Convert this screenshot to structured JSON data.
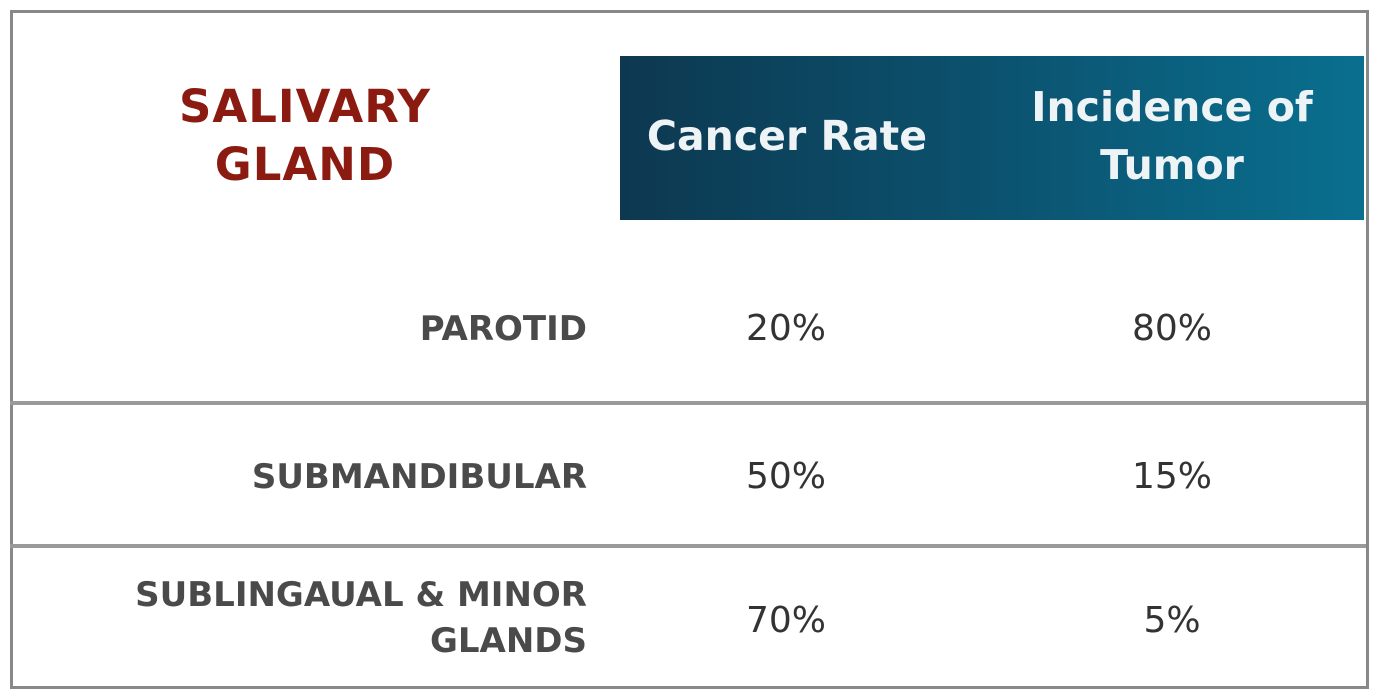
{
  "title": {
    "line1": "SALIVARY",
    "line2": "GLAND"
  },
  "columns": {
    "cancer_rate": "Cancer Rate",
    "incidence_line1": "Incidence of",
    "incidence_line2": "Tumor"
  },
  "rows": [
    {
      "gland_line1": "PAROTID",
      "gland_line2": "",
      "cancer_rate": "20%",
      "incidence": "80%"
    },
    {
      "gland_line1": "SUBMANDIBULAR",
      "gland_line2": "",
      "cancer_rate": "50%",
      "incidence": "15%"
    },
    {
      "gland_line1": "SUBLINGAUAL & MINOR",
      "gland_line2": "GLANDS",
      "cancer_rate": "70%",
      "incidence": "5%"
    }
  ],
  "colors": {
    "title": "#8b1a10",
    "header_dark": "#0d3850",
    "header_light": "#0a6f8f",
    "divider": "#9a9a9a"
  }
}
